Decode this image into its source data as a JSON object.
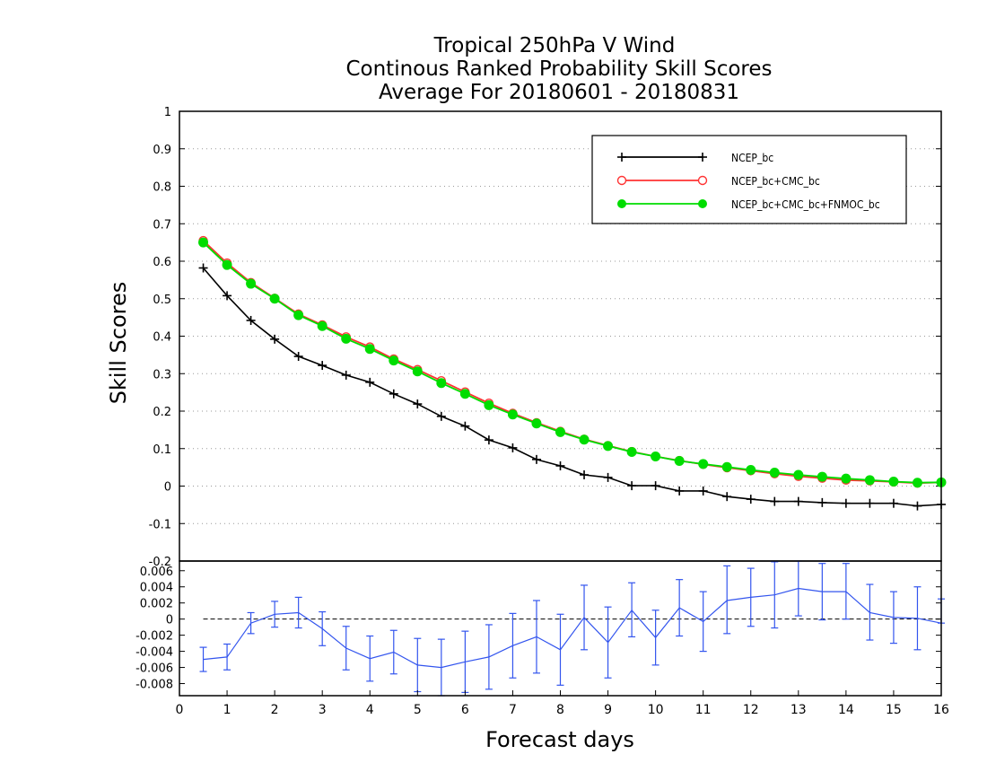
{
  "chart_data": [
    {
      "type": "line",
      "title_lines": [
        "Tropical 250hPa V Wind",
        "Continous Ranked Probability Skill Scores",
        "Average For 20180601 - 20180831"
      ],
      "xlabel": "Forecast days",
      "ylabel": "Skill Scores",
      "xlim": [
        0,
        16
      ],
      "ylim": [
        -0.2,
        1
      ],
      "x_ticks": [
        "0",
        "1",
        "2",
        "3",
        "4",
        "5",
        "6",
        "7",
        "8",
        "9",
        "10",
        "11",
        "12",
        "13",
        "14",
        "15",
        "16"
      ],
      "y_ticks": [
        "1",
        "0.9",
        "0.8",
        "0.7",
        "0.6",
        "0.5",
        "0.4",
        "0.3",
        "0.2",
        "0.1",
        "0",
        "-0.1",
        "-0.2"
      ],
      "grid": true,
      "legend_position": "top-right",
      "x": [
        0.5,
        1,
        1.5,
        2,
        2.5,
        3,
        3.5,
        4,
        4.5,
        5,
        5.5,
        6,
        6.5,
        7,
        7.5,
        8,
        8.5,
        9,
        9.5,
        10,
        10.5,
        11,
        11.5,
        12,
        12.5,
        13,
        13.5,
        14,
        14.5,
        15,
        15.5,
        16
      ],
      "series": [
        {
          "name": "NCEP_bc",
          "color": "#000000",
          "marker": "plus",
          "values": [
            0.582,
            0.508,
            0.442,
            0.392,
            0.346,
            0.322,
            0.296,
            0.277,
            0.246,
            0.219,
            0.186,
            0.16,
            0.123,
            0.102,
            0.071,
            0.054,
            0.03,
            0.023,
            0.001,
            0.001,
            -0.013,
            -0.013,
            -0.028,
            -0.035,
            -0.041,
            -0.041,
            -0.044,
            -0.046,
            -0.046,
            -0.046,
            -0.053,
            -0.049
          ]
        },
        {
          "name": "NCEP_bc+CMC_bc",
          "color": "#ff3333",
          "marker": "open-circle",
          "values": [
            0.655,
            0.595,
            0.543,
            0.501,
            0.459,
            0.43,
            0.398,
            0.371,
            0.339,
            0.311,
            0.281,
            0.251,
            0.221,
            0.194,
            0.169,
            0.146,
            0.125,
            0.108,
            0.092,
            0.079,
            0.068,
            0.058,
            0.049,
            0.041,
            0.033,
            0.026,
            0.021,
            0.016,
            0.014,
            0.011,
            0.008,
            0.01
          ]
        },
        {
          "name": "NCEP_bc+CMC_bc+FNMOC_bc",
          "color": "#00dd00",
          "marker": "filled-circle",
          "values": [
            0.65,
            0.59,
            0.54,
            0.5,
            0.456,
            0.427,
            0.393,
            0.366,
            0.335,
            0.306,
            0.275,
            0.246,
            0.216,
            0.191,
            0.167,
            0.144,
            0.124,
            0.107,
            0.091,
            0.079,
            0.067,
            0.059,
            0.051,
            0.043,
            0.036,
            0.03,
            0.025,
            0.02,
            0.016,
            0.012,
            0.009,
            0.01
          ]
        }
      ]
    },
    {
      "type": "line",
      "xlim": [
        0,
        16
      ],
      "ylim": [
        -0.0095,
        0.0072
      ],
      "y_ticks": [
        "0.006",
        "0.004",
        "0.002",
        "0",
        "-0.002",
        "-0.004",
        "-0.006",
        "-0.008"
      ],
      "x": [
        0.5,
        1,
        1.5,
        2,
        2.5,
        3,
        3.5,
        4,
        4.5,
        5,
        5.5,
        6,
        6.5,
        7,
        7.5,
        8,
        8.5,
        9,
        9.5,
        10,
        10.5,
        11,
        11.5,
        12,
        12.5,
        13,
        13.5,
        14,
        14.5,
        15,
        15.5,
        16
      ],
      "series": [
        {
          "color": "#3355ee",
          "values": [
            -0.005,
            -0.0047,
            -0.0005,
            0.0006,
            0.0008,
            -0.0012,
            -0.0036,
            -0.0049,
            -0.0041,
            -0.0057,
            -0.006,
            -0.0053,
            -0.0047,
            -0.0033,
            -0.0022,
            -0.0038,
            0.0002,
            -0.0029,
            0.0011,
            -0.0023,
            0.0014,
            -0.0003,
            0.0023,
            0.0027,
            0.003,
            0.0038,
            0.0034,
            0.0034,
            0.0008,
            0.0002,
            0.0001,
            -0.0005
          ],
          "error_low": [
            -0.0065,
            -0.0063,
            -0.0018,
            -0.001,
            -0.0011,
            -0.0033,
            -0.0063,
            -0.0077,
            -0.0068,
            -0.009,
            -0.0095,
            -0.0091,
            -0.0087,
            -0.0073,
            -0.0067,
            -0.0082,
            -0.0038,
            -0.0073,
            -0.0022,
            -0.0057,
            -0.0021,
            -0.004,
            -0.0018,
            -0.0009,
            -0.0011,
            0.0004,
            -0.0001,
            0.0,
            -0.0026,
            -0.003,
            -0.0038,
            -0.0005
          ],
          "error_high": [
            -0.0035,
            -0.0031,
            0.0008,
            0.0022,
            0.0027,
            0.0009,
            -0.0009,
            -0.0021,
            -0.0014,
            -0.0024,
            -0.0025,
            -0.0015,
            -0.0007,
            0.0007,
            0.0023,
            0.0006,
            0.0042,
            0.0015,
            0.0045,
            0.0011,
            0.0049,
            0.0034,
            0.0066,
            0.0063,
            0.0071,
            0.0072,
            0.0069,
            0.0069,
            0.0043,
            0.0034,
            0.004,
            0.0025
          ]
        }
      ]
    }
  ]
}
